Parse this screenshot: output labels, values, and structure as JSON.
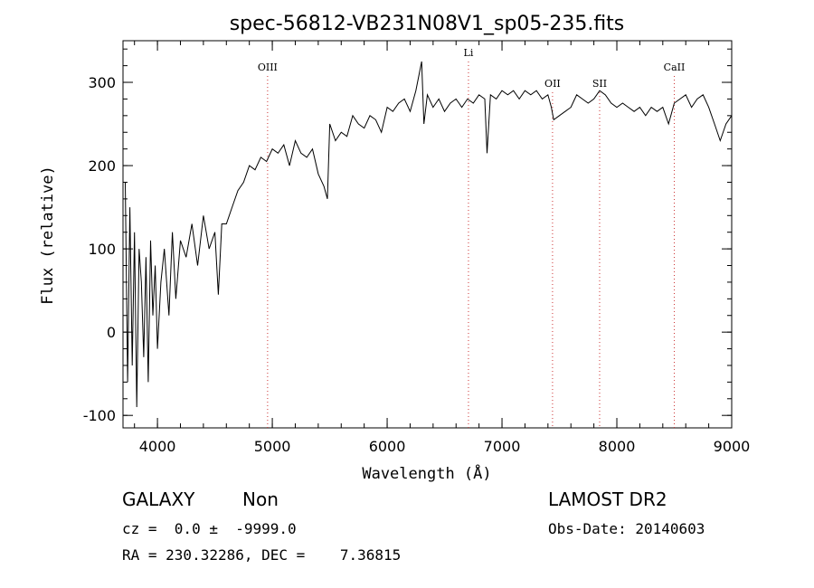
{
  "chart_data": {
    "type": "line",
    "title": "spec-56812-VB231N08V1_sp05-235.fits",
    "xlabel": "Wavelength (Å)",
    "ylabel": "Flux (relative)",
    "xlim": [
      3700,
      9000
    ],
    "ylim": [
      -115,
      350
    ],
    "x_ticks": [
      4000,
      5000,
      6000,
      7000,
      8000,
      9000
    ],
    "y_ticks": [
      -100,
      0,
      100,
      200,
      300
    ],
    "grid": false,
    "line_color": "#000000",
    "marker_color": "#cc3333",
    "series": [
      {
        "x": [
          3720,
          3740,
          3760,
          3780,
          3800,
          3820,
          3840,
          3860,
          3880,
          3900,
          3920,
          3940,
          3960,
          3980,
          4000,
          4030,
          4060,
          4100,
          4130,
          4160,
          4200,
          4250,
          4300,
          4350,
          4400,
          4450,
          4500,
          4530,
          4560,
          4600,
          4650,
          4700,
          4750,
          4800,
          4850,
          4900,
          4950,
          5000,
          5050,
          5100,
          5150,
          5200,
          5250,
          5300,
          5350,
          5400,
          5450,
          5480,
          5500,
          5550,
          5600,
          5650,
          5700,
          5750,
          5800,
          5850,
          5900,
          5950,
          6000,
          6050,
          6100,
          6150,
          6200,
          6250,
          6300,
          6320,
          6350,
          6400,
          6450,
          6500,
          6550,
          6600,
          6650,
          6700,
          6750,
          6800,
          6850,
          6870,
          6900,
          6950,
          7000,
          7050,
          7100,
          7150,
          7200,
          7250,
          7300,
          7350,
          7400,
          7430,
          7450,
          7500,
          7550,
          7600,
          7650,
          7700,
          7750,
          7800,
          7850,
          7900,
          7950,
          8000,
          8050,
          8100,
          8150,
          8200,
          8250,
          8300,
          8350,
          8400,
          8450,
          8500,
          8550,
          8600,
          8650,
          8700,
          8750,
          8800,
          8850,
          8900,
          8950,
          9000
        ],
        "y": [
          180,
          -60,
          150,
          -40,
          120,
          -90,
          100,
          60,
          -30,
          90,
          -60,
          110,
          20,
          80,
          -20,
          60,
          100,
          20,
          120,
          40,
          110,
          90,
          130,
          80,
          140,
          100,
          120,
          45,
          130,
          130,
          150,
          170,
          180,
          200,
          195,
          210,
          205,
          220,
          215,
          225,
          200,
          230,
          215,
          210,
          220,
          190,
          175,
          160,
          250,
          230,
          240,
          235,
          260,
          250,
          245,
          260,
          255,
          240,
          270,
          265,
          275,
          280,
          265,
          290,
          325,
          250,
          285,
          270,
          280,
          265,
          275,
          280,
          270,
          280,
          275,
          285,
          280,
          215,
          285,
          280,
          290,
          285,
          290,
          280,
          290,
          285,
          290,
          280,
          285,
          270,
          255,
          260,
          265,
          270,
          285,
          280,
          275,
          280,
          290,
          285,
          275,
          270,
          275,
          270,
          265,
          270,
          260,
          270,
          265,
          270,
          250,
          275,
          280,
          285,
          270,
          280,
          285,
          270,
          250,
          230,
          250,
          260
        ]
      }
    ],
    "line_markers": [
      {
        "label": "OIII",
        "x": 4959
      },
      {
        "label": "Li",
        "x": 6708
      },
      {
        "label": "OII",
        "x": 7440
      },
      {
        "label": "SII",
        "x": 7850
      },
      {
        "label": "CaII",
        "x": 8500
      }
    ]
  },
  "info": {
    "object_class": "GALAXY",
    "subclass": "Non",
    "survey": "LAMOST DR2",
    "redshift_text": "cz =  0.0 ±  -9999.0",
    "obs_date_text": "Obs-Date: 20140603",
    "coords_text": "RA = 230.32286, DEC =    7.36815"
  }
}
